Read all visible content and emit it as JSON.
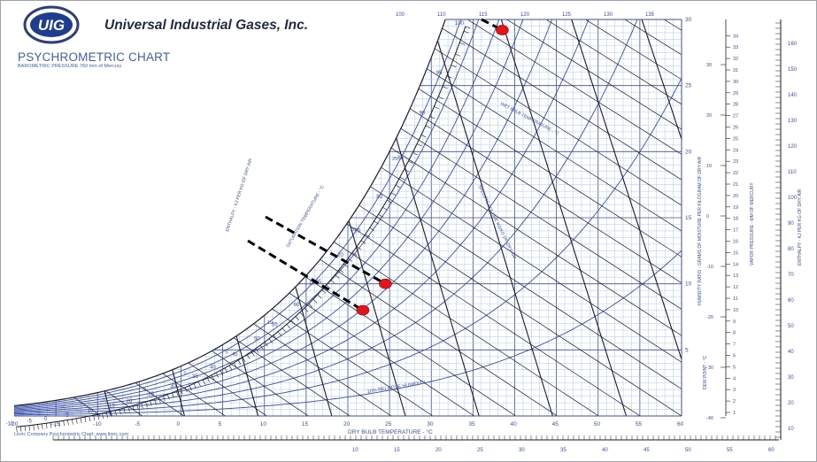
{
  "header": {
    "brand_mark": "UIG",
    "brand_name": "Universal Industrial Gases, Inc.",
    "chart_title": "PSYCHROMETRIC CHART",
    "chart_subtitle": "BAROMETRIC PRESSURE 760 mm of Mercury"
  },
  "footer": {
    "credit": "Linric Company Psychrometric Chart, www.linric.com"
  },
  "colors": {
    "grid_fine": "#9ec4ee",
    "grid_major": "#3a4ea8",
    "line_dark": "#1a1a2a",
    "marker": "#e3141b",
    "text": "#3a4fa0"
  },
  "chart_data": {
    "type": "scatter",
    "title": "PSYCHROMETRIC CHART",
    "xlabel": "DRY BULB TEMPERATURE - °C",
    "ylabel_left": "HUMIDITY RATIO - GRAMS OF MOISTURE PER KILOGRAM OF DRY AIR",
    "ylabel_right_pressure": "VAPOR PRESSURE - MM OF MERCURY",
    "ylabel_dewpoint": "DEW POINT - °C",
    "enthalpy_label": "ENTHALPY - KJ PER KG OF DRY AIR",
    "wet_bulb_label": "WET BULB TEMPERATURE - °C",
    "rh_label": "10% RELATIVE HUMIDITY",
    "specific_volume_label": "SPECIFIC VOLUME M3/KG OF DRY AIR",
    "saturation_label": "SATURATION TEMPERATURE - °C",
    "xlim": [
      -20,
      60
    ],
    "ylim": [
      0,
      30
    ],
    "x_ticks": [
      -20,
      -15,
      -10,
      -5,
      0,
      5,
      10,
      15,
      20,
      25,
      30,
      35,
      40,
      45,
      50,
      55,
      60
    ],
    "y_ticks": [
      5,
      10,
      15,
      20,
      25,
      30
    ],
    "vapor_pressure_ticks": [
      1,
      2,
      3,
      4,
      5,
      6,
      7,
      8,
      9,
      10,
      11,
      12,
      13,
      14,
      15,
      16,
      17,
      18,
      19,
      20,
      21,
      22,
      23,
      24,
      25,
      26,
      27,
      28,
      29,
      30,
      31,
      32,
      33,
      34
    ],
    "vapor_pressure_major": [
      10,
      20,
      30
    ],
    "dewpoint_ticks": [
      -40,
      -30,
      -20,
      -10,
      0,
      10,
      20,
      30
    ],
    "enthalpy_scale_ticks": [
      -10,
      -5,
      0,
      5,
      10,
      15,
      20,
      25,
      30,
      35,
      40,
      45,
      50,
      55,
      60,
      65,
      70,
      75,
      80,
      85,
      90,
      95,
      100
    ],
    "enthalpy_top_ticks": [
      100,
      110,
      115,
      120,
      125,
      130,
      135
    ],
    "enthalpy_bottom_ticks": [
      10,
      15,
      20,
      25,
      30,
      35,
      40,
      45,
      50,
      55,
      60
    ],
    "enthalpy_right_ticks": [
      10,
      20,
      30,
      40,
      50,
      60,
      70,
      80,
      90,
      100,
      110,
      120,
      130,
      140,
      150,
      160
    ],
    "wet_bulb_ticks": [
      -15,
      -10,
      -5,
      0,
      5,
      10,
      15,
      20,
      25
    ],
    "points": [
      {
        "x": 38.5,
        "y": 29.2
      },
      {
        "x": 24.5,
        "y": 10.0
      },
      {
        "x": 21.8,
        "y": 8.0
      }
    ]
  }
}
